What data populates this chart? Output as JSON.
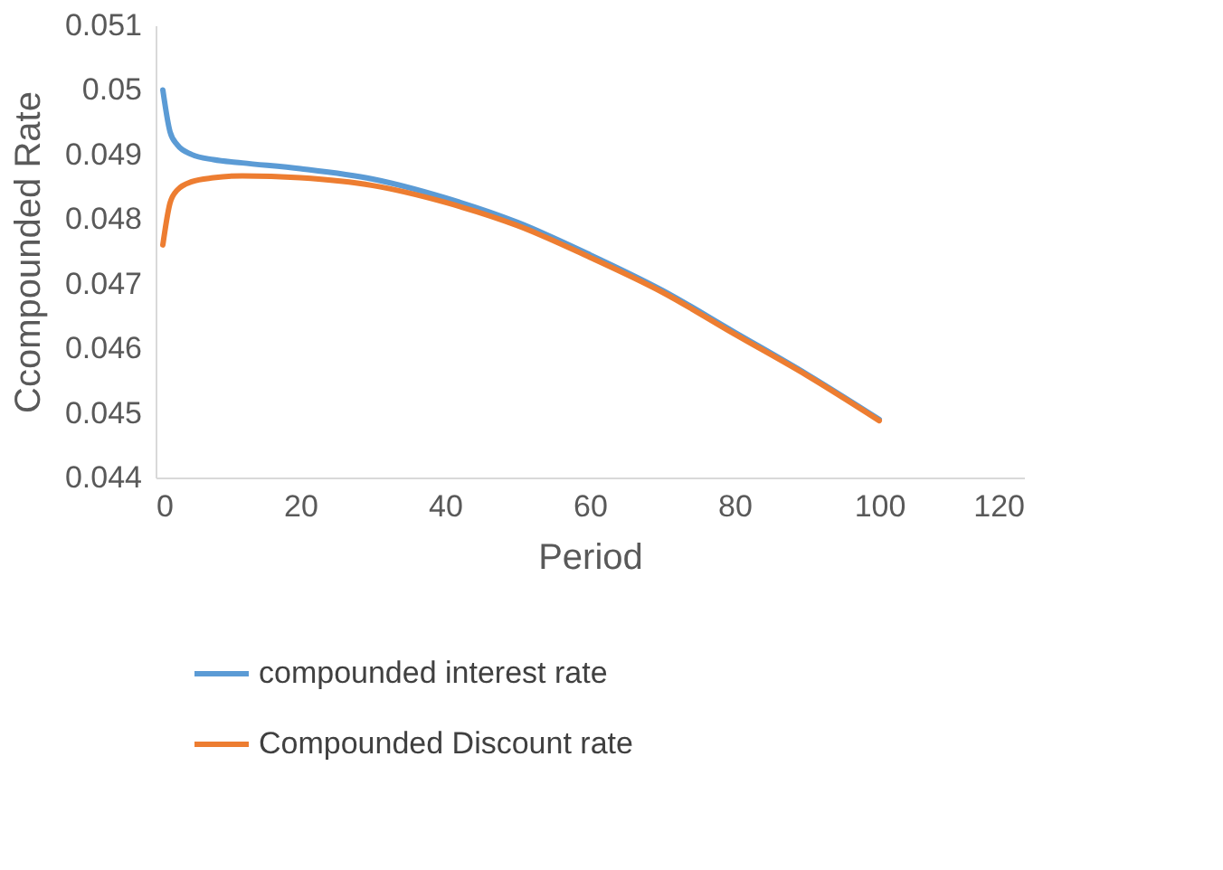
{
  "chart_data": {
    "type": "line",
    "xlabel": "Period",
    "ylabel": "Ccompounded Rate",
    "xlim": [
      0,
      120
    ],
    "xticks": [
      0,
      20,
      40,
      60,
      80,
      100,
      120
    ],
    "ylim": [
      0.044,
      0.051
    ],
    "yticks": [
      0.044,
      0.045,
      0.046,
      0.047,
      0.048,
      0.049,
      0.05,
      0.051
    ],
    "grid": false,
    "legend": "bottom",
    "line_style": "solid",
    "marker": "none",
    "series": [
      {
        "name": "compounded interest rate",
        "color": "#5b9bd5",
        "x": [
          1,
          2,
          3,
          5,
          8,
          12,
          20,
          30,
          40,
          50,
          60,
          70,
          80,
          90,
          100
        ],
        "values": [
          0.05,
          0.04935,
          0.04915,
          0.049,
          0.04892,
          0.04887,
          0.04878,
          0.04862,
          0.04833,
          0.04795,
          0.04745,
          0.0469,
          0.04625,
          0.0456,
          0.0449
        ]
      },
      {
        "name": "Compounded Discount rate",
        "color": "#ed7d31",
        "x": [
          1,
          2,
          3,
          5,
          8,
          12,
          20,
          30,
          40,
          50,
          60,
          70,
          80,
          90,
          100
        ],
        "values": [
          0.0476,
          0.04825,
          0.04845,
          0.04858,
          0.04864,
          0.04867,
          0.04864,
          0.04852,
          0.04826,
          0.0479,
          0.04741,
          0.04687,
          0.04622,
          0.04558,
          0.04488
        ]
      }
    ]
  }
}
